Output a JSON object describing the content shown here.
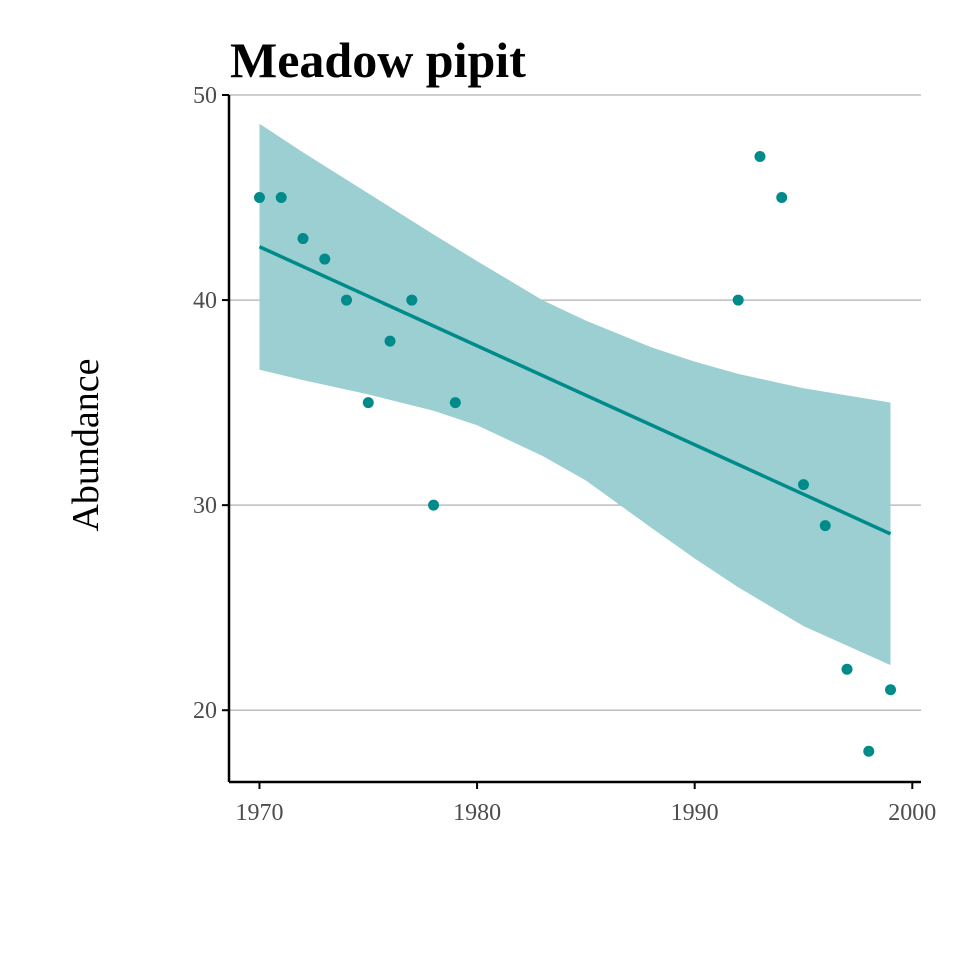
{
  "chart_data": {
    "type": "scatter",
    "title": "Meadow pipit",
    "xlabel": "",
    "ylabel": "Abundance",
    "xlim": [
      1968.6,
      2000.4
    ],
    "ylim": [
      16.5,
      50
    ],
    "x_ticks": [
      1970,
      1980,
      1990,
      2000
    ],
    "y_ticks": [
      20,
      30,
      40,
      50
    ],
    "grid": "horizontal",
    "legend": "none",
    "points": [
      {
        "x": 1970,
        "y": 45
      },
      {
        "x": 1971,
        "y": 45
      },
      {
        "x": 1972,
        "y": 43
      },
      {
        "x": 1973,
        "y": 42
      },
      {
        "x": 1974,
        "y": 40
      },
      {
        "x": 1975,
        "y": 35
      },
      {
        "x": 1976,
        "y": 38
      },
      {
        "x": 1977,
        "y": 40
      },
      {
        "x": 1978,
        "y": 30
      },
      {
        "x": 1979,
        "y": 35
      },
      {
        "x": 1992,
        "y": 40
      },
      {
        "x": 1993,
        "y": 47
      },
      {
        "x": 1994,
        "y": 45
      },
      {
        "x": 1995,
        "y": 31
      },
      {
        "x": 1996,
        "y": 29
      },
      {
        "x": 1997,
        "y": 22
      },
      {
        "x": 1998,
        "y": 18
      },
      {
        "x": 1999,
        "y": 21
      }
    ],
    "trend": {
      "type": "linear fit",
      "x": [
        1970,
        1999
      ],
      "y": [
        42.6,
        28.6
      ]
    },
    "confidence_band": [
      {
        "x": 1970,
        "lower": 36.6,
        "upper": 48.6
      },
      {
        "x": 1972,
        "lower": 36.1,
        "upper": 47.2
      },
      {
        "x": 1975,
        "lower": 35.4,
        "upper": 45.2
      },
      {
        "x": 1978,
        "lower": 34.6,
        "upper": 43.2
      },
      {
        "x": 1980,
        "lower": 33.9,
        "upper": 41.9
      },
      {
        "x": 1983,
        "lower": 32.4,
        "upper": 40.0
      },
      {
        "x": 1985,
        "lower": 31.2,
        "upper": 39.0
      },
      {
        "x": 1988,
        "lower": 28.9,
        "upper": 37.7
      },
      {
        "x": 1990,
        "lower": 27.4,
        "upper": 37.0
      },
      {
        "x": 1992,
        "lower": 26.0,
        "upper": 36.4
      },
      {
        "x": 1995,
        "lower": 24.1,
        "upper": 35.7
      },
      {
        "x": 1999,
        "lower": 22.2,
        "upper": 35.0
      }
    ],
    "colors": {
      "points": "#008b8b",
      "line": "#008b8b",
      "band": "#9bcfd2"
    }
  }
}
